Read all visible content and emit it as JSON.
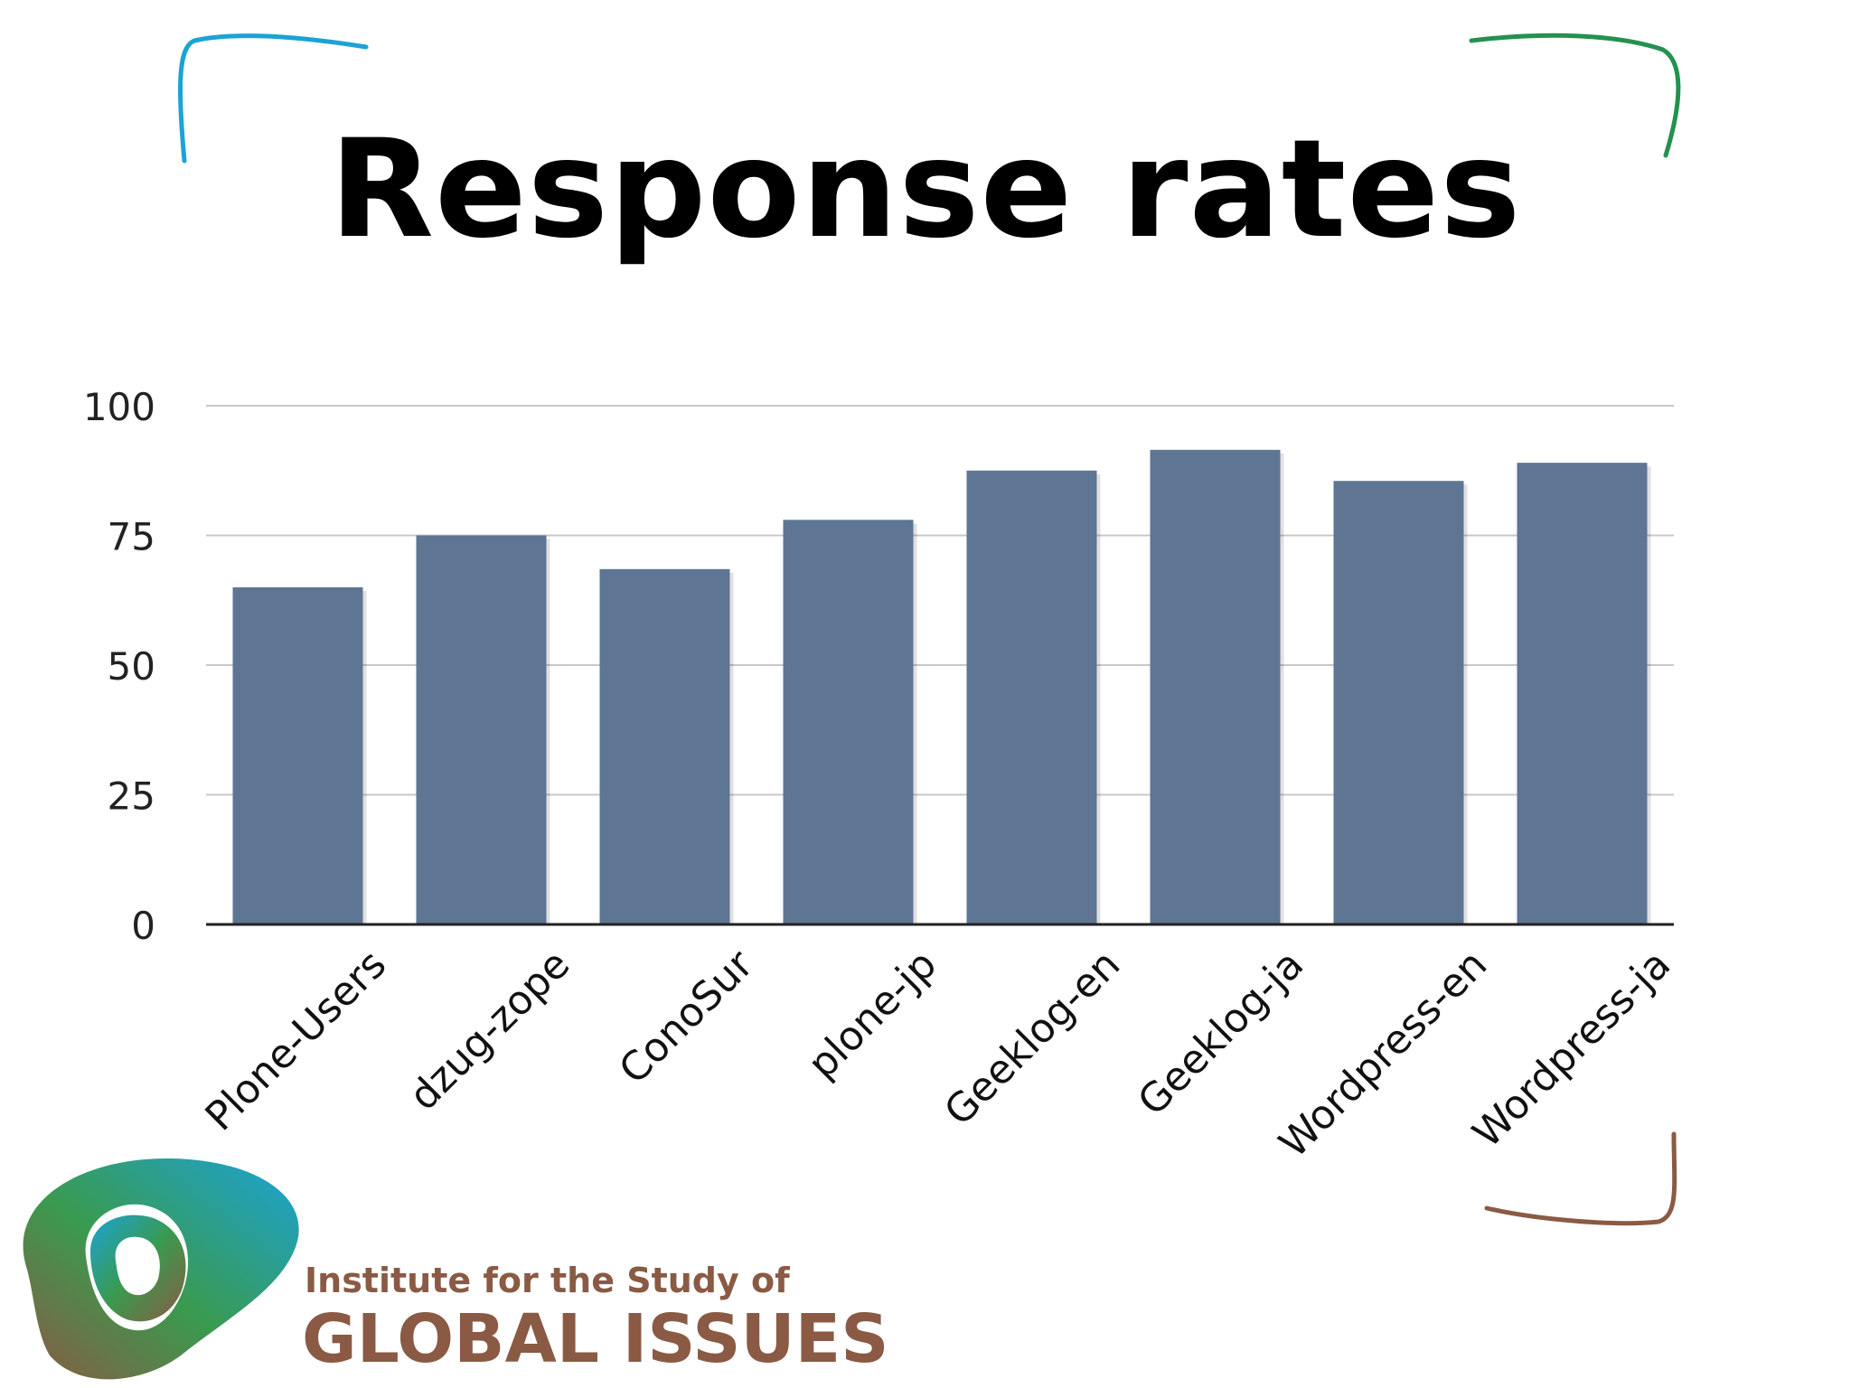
{
  "slide": {
    "title": "Response rates"
  },
  "chart_data": {
    "type": "bar",
    "title": "",
    "xlabel": "",
    "ylabel": "",
    "categories": [
      "Plone-Users",
      "dzug-zope",
      "ConoSur",
      "plone-jp",
      "Geeklog-en",
      "Geeklog-ja",
      "Wordpress-en",
      "Wordpress-ja"
    ],
    "values": [
      65,
      75,
      68.5,
      78,
      87.5,
      91.5,
      85.5,
      89
    ],
    "ylim": [
      0,
      100
    ],
    "yticks": [
      0,
      25,
      50,
      75,
      100
    ],
    "grid": true,
    "legend": "none",
    "bar_color": "#5e7594"
  },
  "logo": {
    "line1": "Institute for the Study of",
    "line2": "GLOBAL ISSUES",
    "text_color": "#8a5a44"
  },
  "colors": {
    "corner_top_left": "#1ba3d6",
    "corner_top_right": "#23924f",
    "corner_bottom_right": "#8a5a44"
  }
}
